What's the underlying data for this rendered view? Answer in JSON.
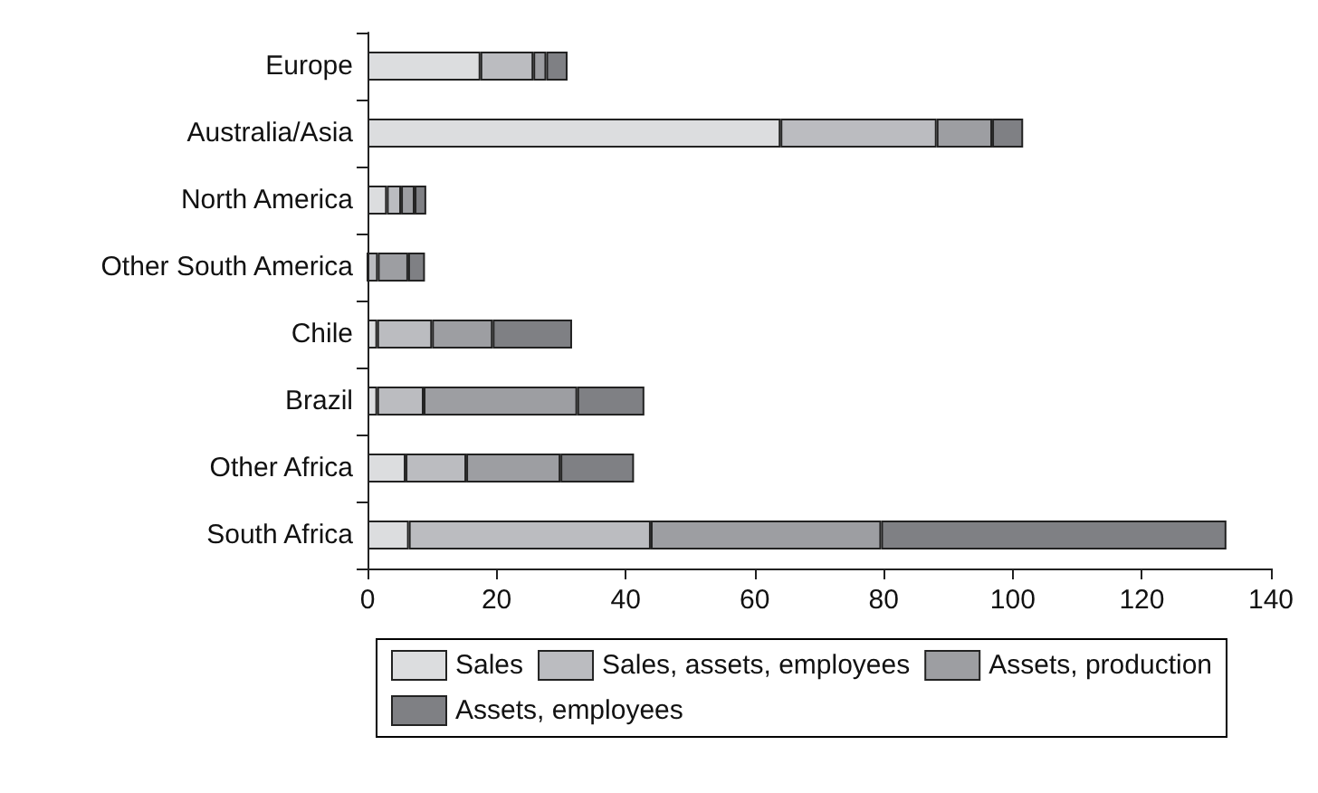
{
  "chart_data": {
    "type": "bar",
    "orientation": "horizontal",
    "stacked": true,
    "categories": [
      "Europe",
      "Australia/Asia",
      "North America",
      "Other South America",
      "Chile",
      "Brazil",
      "Other Africa",
      "South Africa"
    ],
    "series": [
      {
        "name": "Sales",
        "color": "#dcdddf",
        "values": [
          17.5,
          64,
          3.0,
          0,
          1.5,
          1.5,
          5.9,
          6.4
        ]
      },
      {
        "name": "Sales, assets, employees",
        "color": "#bbbcc0",
        "values": [
          8.2,
          24.2,
          2.2,
          1.6,
          8.5,
          7.2,
          9.4,
          37.5
        ]
      },
      {
        "name": "Assets, production",
        "color": "#9d9ea2",
        "values": [
          2.0,
          8.6,
          2.1,
          4.7,
          9.4,
          23.8,
          14.6,
          35.7
        ]
      },
      {
        "name": "Assets, employees",
        "color": "#7f8084",
        "values": [
          3.3,
          4.8,
          1.8,
          2.6,
          12.3,
          10.4,
          11.4,
          53.5
        ]
      }
    ],
    "xlim": [
      0,
      140
    ],
    "xticks": [
      0,
      20,
      40,
      60,
      80,
      100,
      120,
      140
    ],
    "grid": false,
    "legend": "bottom"
  }
}
